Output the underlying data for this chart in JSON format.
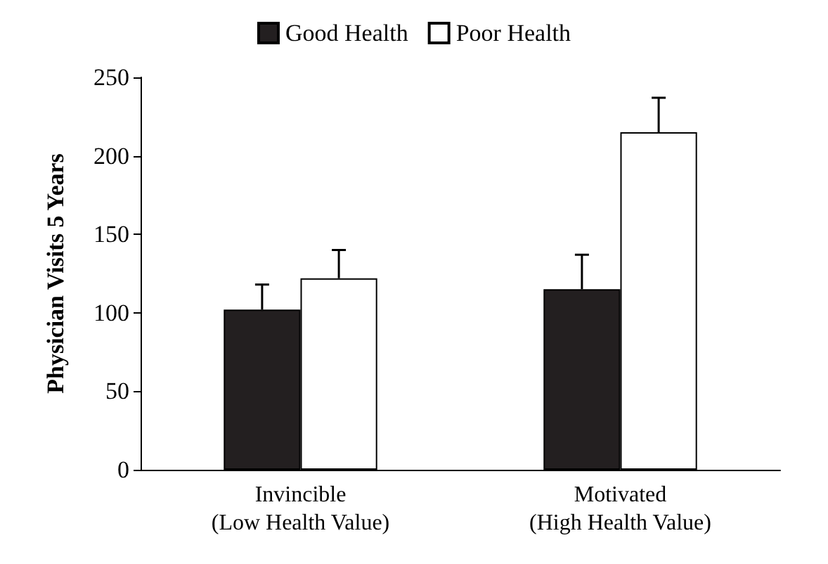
{
  "chart_data": {
    "type": "bar",
    "ylabel": "Physician Visits 5 Years",
    "categories": [
      "Invincible\n(Low Health Value)",
      "Motivated\n(High Health Value)"
    ],
    "series": [
      {
        "name": "Good Health",
        "color": "#231f20",
        "values": [
          102,
          115
        ],
        "errors": [
          [
            102,
            118
          ],
          [
            115,
            137
          ]
        ]
      },
      {
        "name": "Poor Health",
        "color": "#ffffff",
        "values": [
          122,
          215
        ],
        "errors": [
          [
            122,
            140
          ],
          [
            215,
            237
          ]
        ]
      }
    ],
    "ylim": [
      0,
      250
    ],
    "yticks": [
      0,
      50,
      100,
      150,
      200,
      250
    ],
    "grid": false,
    "legend": "top"
  }
}
